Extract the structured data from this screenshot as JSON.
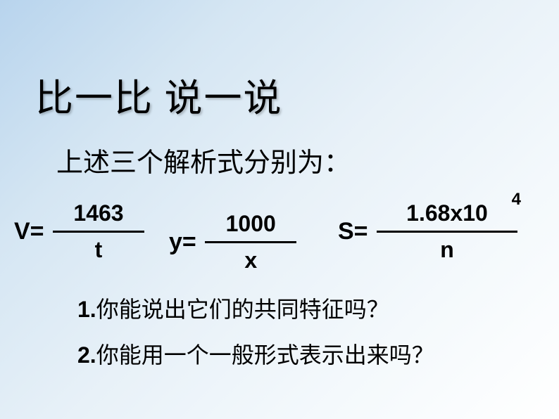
{
  "title": "比一比 说一说",
  "subtitle": "上述三个解析式分别为：",
  "formulas": {
    "f1": {
      "lhs": "V=",
      "num": "1463",
      "den": "t"
    },
    "f2": {
      "lhs": "y=",
      "num": "1000",
      "den": "x"
    },
    "f3": {
      "lhs": "S=",
      "num": "1.68x10",
      "exp": "4",
      "den": "n"
    }
  },
  "questions": {
    "q1": {
      "num": "1.",
      "text": "你能说出它们的共同特征吗？"
    },
    "q2": {
      "num": "2.",
      "text": "你能用一个一般形式表示出来吗？"
    }
  }
}
